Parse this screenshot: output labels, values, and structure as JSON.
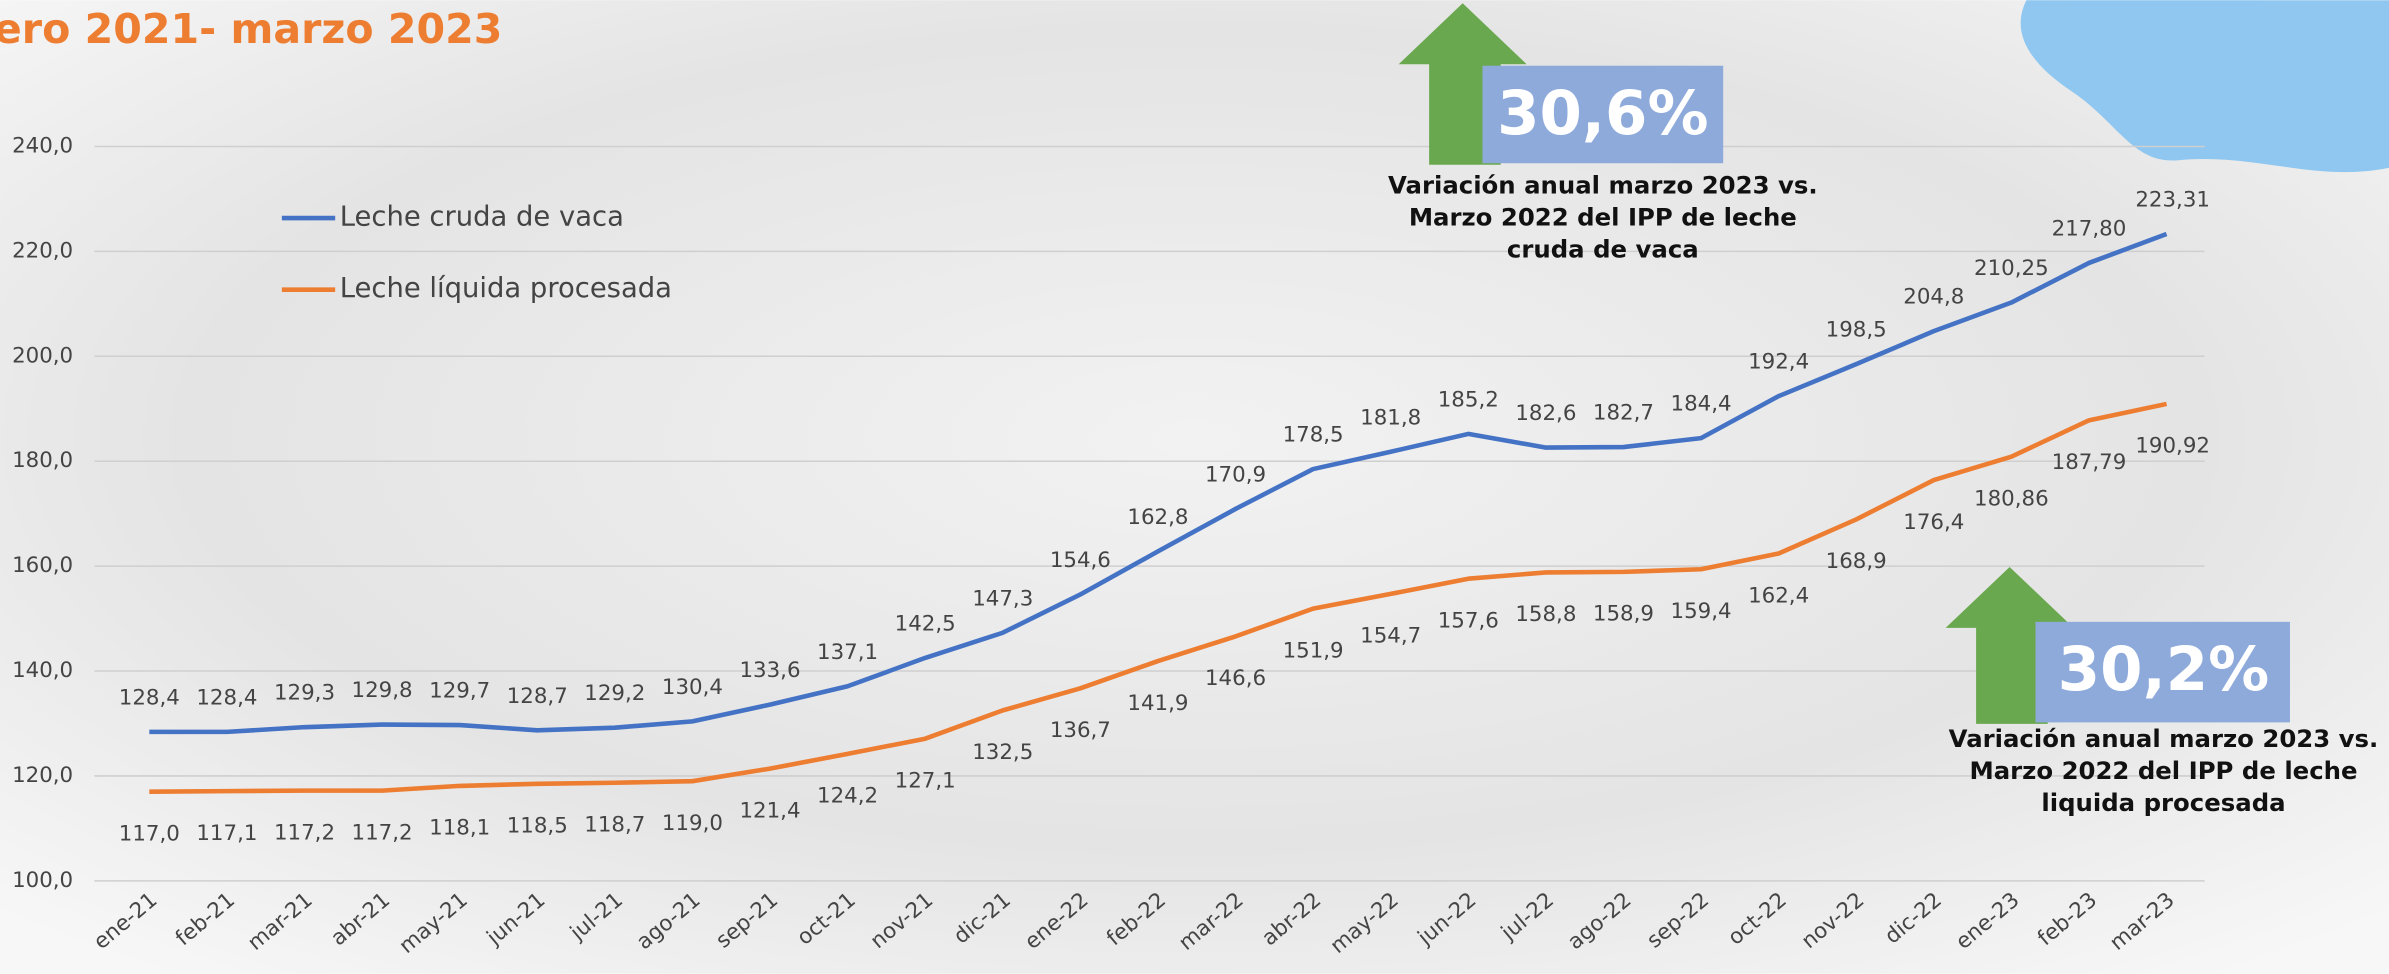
{
  "chart_data": {
    "type": "line",
    "title": "ero 2021- marzo 2023",
    "categories": [
      "ene-21",
      "feb-21",
      "mar-21",
      "abr-21",
      "may-21",
      "jun-21",
      "jul-21",
      "ago-21",
      "sep-21",
      "oct-21",
      "nov-21",
      "dic-21",
      "ene-22",
      "feb-22",
      "mar-22",
      "abr-22",
      "may-22",
      "jun-22",
      "jul-22",
      "ago-22",
      "sep-22",
      "oct-22",
      "nov-22",
      "dic-22",
      "ene-23",
      "feb-23",
      "mar-23"
    ],
    "series": [
      {
        "name": "Leche cruda de vaca",
        "color": "#4472c4",
        "values": [
          128.4,
          128.4,
          129.3,
          129.8,
          129.7,
          128.7,
          129.2,
          130.4,
          133.6,
          137.1,
          142.5,
          147.3,
          154.6,
          162.8,
          170.9,
          178.5,
          181.8,
          185.2,
          182.6,
          182.7,
          184.4,
          192.4,
          198.5,
          204.8,
          210.25,
          217.8,
          223.31
        ],
        "value_labels": [
          "128,4",
          "128,4",
          "129,3",
          "129,8",
          "129,7",
          "128,7",
          "129,2",
          "130,4",
          "133,6",
          "137,1",
          "142,5",
          "147,3",
          "154,6",
          "162,8",
          "170,9",
          "178,5",
          "181,8",
          "185,2",
          "182,6",
          "182,7",
          "184,4",
          "192,4",
          "198,5",
          "204,8",
          "210,25",
          "217,80",
          "223,31"
        ]
      },
      {
        "name": "Leche líquida procesada",
        "color": "#ed7d31",
        "values": [
          117.0,
          117.1,
          117.2,
          117.2,
          118.1,
          118.5,
          118.7,
          119.0,
          121.4,
          124.2,
          127.1,
          132.5,
          136.7,
          141.9,
          146.6,
          151.9,
          154.7,
          157.6,
          158.8,
          158.9,
          159.4,
          162.4,
          168.9,
          176.4,
          180.86,
          187.79,
          190.92
        ],
        "value_labels": [
          "117,0",
          "117,1",
          "117,2",
          "117,2",
          "118,1",
          "118,5",
          "118,7",
          "119,0",
          "121,4",
          "124,2",
          "127,1",
          "132,5",
          "136,7",
          "141,9",
          "146,6",
          "151,9",
          "154,7",
          "157,6",
          "158,8",
          "158,9",
          "159,4",
          "162,4",
          "168,9",
          "176,4",
          "180,86",
          "187,79",
          "190,92"
        ]
      }
    ],
    "ylim": [
      100,
      240
    ],
    "yticks": [
      {
        "value": 100,
        "label": "100,0"
      },
      {
        "value": 120,
        "label": "120,0"
      },
      {
        "value": 140,
        "label": "140,0"
      },
      {
        "value": 160,
        "label": "160,0"
      },
      {
        "value": 180,
        "label": "180,0"
      },
      {
        "value": 200,
        "label": "200,0"
      },
      {
        "value": 220,
        "label": "220,0"
      },
      {
        "value": 240,
        "label": "240,0"
      }
    ],
    "grid": true,
    "legend": "upper left",
    "annotations": [
      {
        "percent": "30,6%",
        "lines": [
          "Variación anual marzo 2023 vs.",
          "Marzo 2022 del IPP de leche",
          "cruda de vaca"
        ]
      },
      {
        "percent": "30,2%",
        "lines": [
          "Variación anual marzo 2023 vs.",
          "Marzo 2022 del IPP de leche",
          "liquida procesada"
        ]
      }
    ]
  }
}
